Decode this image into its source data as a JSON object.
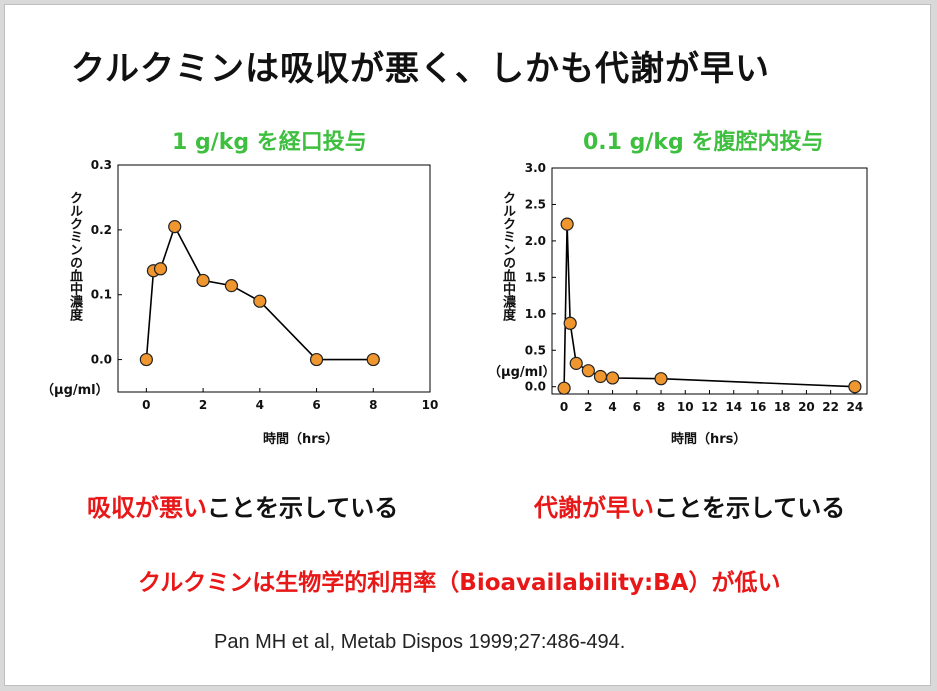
{
  "slide": {
    "title": "クルクミンは吸収が悪く、しかも代謝が早い",
    "statement_left": {
      "red": "吸収が悪い",
      "black": "ことを示している"
    },
    "statement_right": {
      "red": "代謝が早い",
      "black": "ことを示している"
    },
    "conclusion": "クルクミンは生物学的利用率（Bioavailability:BA）が低い",
    "citation": "Pan MH et al, Metab Dispos 1999;27:486-494."
  },
  "chart_data": [
    {
      "type": "line",
      "title": "1 g/kg を経口投与",
      "ylabel": "クルクミンの血中濃度",
      "yunit": "（μg/ml）",
      "xlabel": "時間（hrs）",
      "xlim": [
        -1,
        10
      ],
      "ylim": [
        -0.05,
        0.3
      ],
      "xticks": [
        0,
        2,
        4,
        6,
        8,
        10
      ],
      "yticks": [
        0.0,
        0.1,
        0.2,
        0.3
      ],
      "ytick_labels": [
        "0.0",
        "0.1",
        "0.2",
        "0.3"
      ],
      "grid": false,
      "marker_color": "#f0962e",
      "series": [
        {
          "x": [
            0,
            0.25,
            0.5,
            1,
            2,
            3,
            4,
            6,
            8
          ],
          "y": [
            0.0,
            0.137,
            0.14,
            0.205,
            0.122,
            0.114,
            0.09,
            0.0,
            0.0
          ]
        }
      ]
    },
    {
      "type": "line",
      "title": "0.1 g/kg を腹腔内投与",
      "ylabel": "クルクミンの血中濃度",
      "yunit": "（μg/ml）",
      "xlabel": "時間（hrs）",
      "xlim": [
        -1,
        25
      ],
      "ylim": [
        -0.1,
        3.0
      ],
      "xticks": [
        0,
        2,
        4,
        6,
        8,
        10,
        12,
        14,
        16,
        18,
        20,
        22,
        24
      ],
      "yticks": [
        0.0,
        0.5,
        1.0,
        1.5,
        2.0,
        2.5,
        3.0
      ],
      "ytick_labels": [
        "0.0",
        "0.5",
        "1.0",
        "1.5",
        "2.0",
        "2.5",
        "3.0"
      ],
      "grid": false,
      "marker_color": "#f0962e",
      "series": [
        {
          "x": [
            0,
            0.25,
            0.5,
            1,
            2,
            3,
            4,
            8,
            24
          ],
          "y": [
            -0.02,
            2.23,
            0.87,
            0.32,
            0.22,
            0.14,
            0.12,
            0.11,
            0.0
          ]
        }
      ]
    }
  ]
}
